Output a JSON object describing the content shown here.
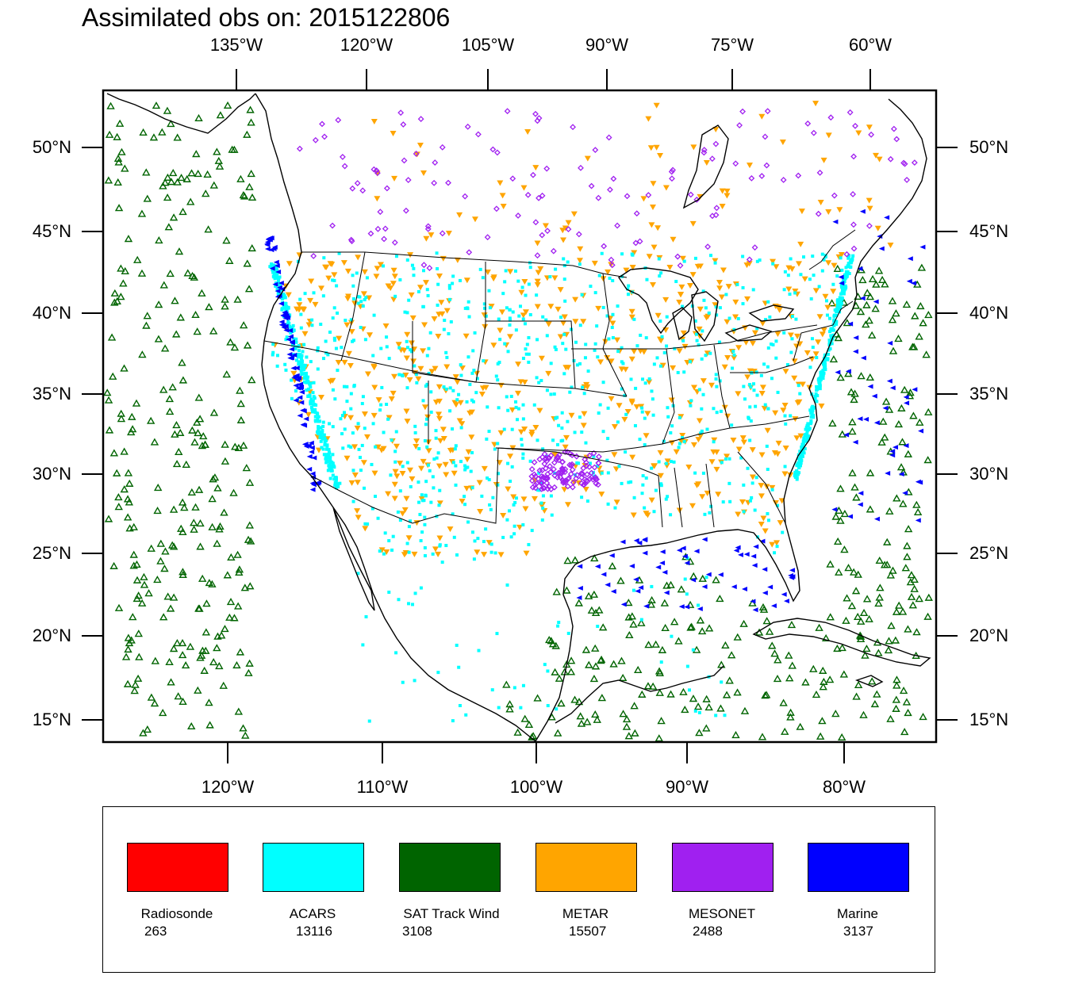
{
  "title": "Assimilated obs on: 2015122806",
  "axes": {
    "top_lon_labels": [
      "135°W",
      "120°W",
      "105°W",
      "90°W",
      "75°W",
      "60°W"
    ],
    "bottom_lon_labels": [
      "120°W",
      "110°W",
      "100°W",
      "90°W",
      "80°W"
    ],
    "lat_labels": [
      "50°N",
      "45°N",
      "40°N",
      "35°N",
      "30°N",
      "25°N",
      "20°N",
      "15°N"
    ]
  },
  "map": {
    "projection": "Lambert conformal",
    "region": "Continental United States",
    "marker_shapes": {
      "SAT Track Wind": "triangle-up",
      "METAR": "triangle-down",
      "ACARS": "square",
      "MESONET": "diamond",
      "Marine": "triangle-left"
    }
  },
  "legend": [
    {
      "name": "Radiosonde",
      "count": "263",
      "color": "#ff0000"
    },
    {
      "name": "ACARS",
      "count": "13116",
      "color": "#00ffff"
    },
    {
      "name": "SAT Track Wind",
      "count": "3108",
      "color": "#006400"
    },
    {
      "name": "METAR",
      "count": "15507",
      "color": "#ffa500"
    },
    {
      "name": "MESONET",
      "count": "2488",
      "color": "#a020f0"
    },
    {
      "name": "Marine",
      "count": "3137",
      "color": "#0000ff"
    }
  ]
}
